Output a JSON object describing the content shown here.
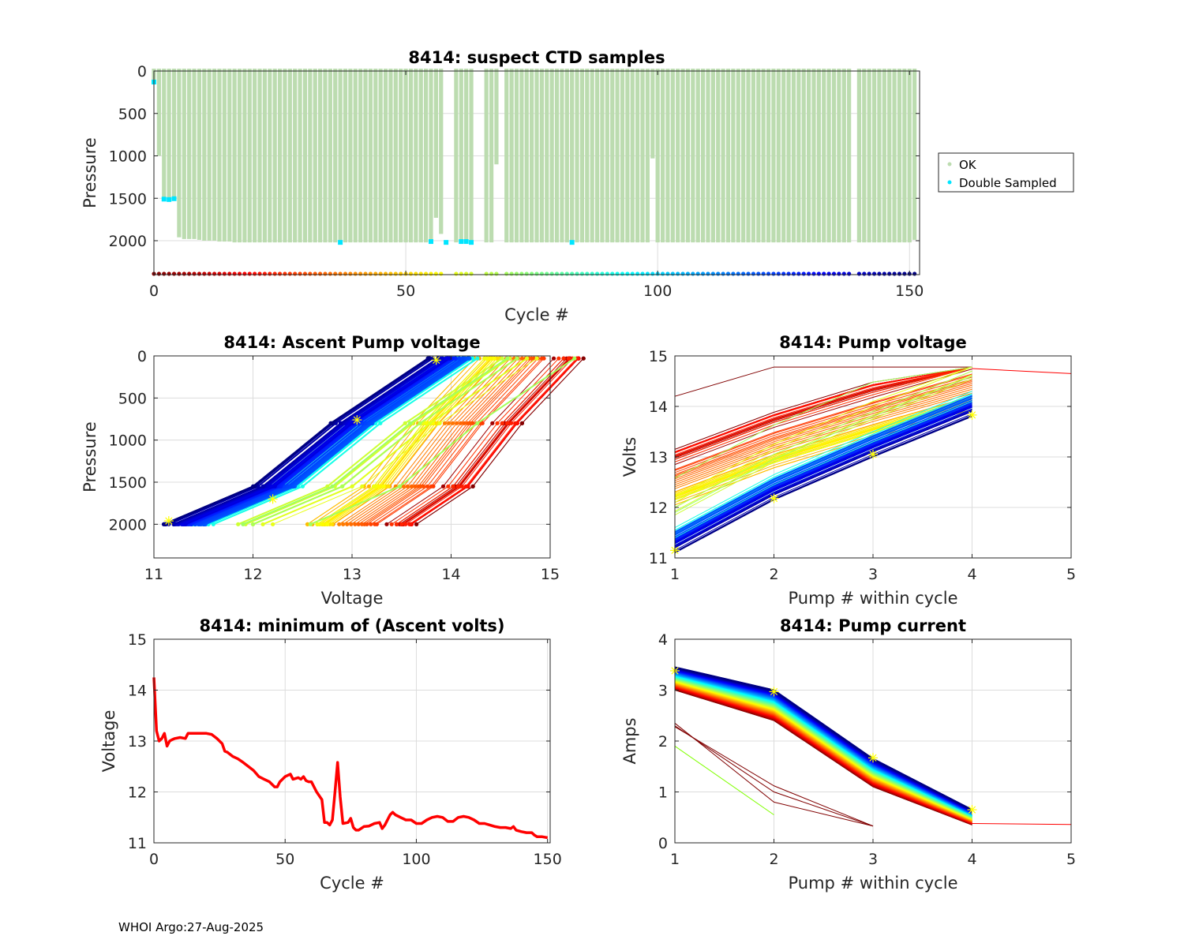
{
  "footer": "WHOI Argo:27-Aug-2025",
  "colors": {
    "ok": "#bcdcb0",
    "double_sampled": "#00e5ff",
    "min_line": "#ff0000",
    "marker": "#ffff00",
    "grid": "#dcdcdc",
    "axis": "#262626"
  },
  "chart_data": [
    {
      "id": "suspect-ctd",
      "type": "bar",
      "title": "8414: suspect CTD samples",
      "xlabel": "Cycle #",
      "ylabel": "Pressure",
      "xlim": [
        0,
        152
      ],
      "ylim": [
        0,
        2400
      ],
      "y_reversed": true,
      "xticks": [
        0,
        50,
        100,
        150
      ],
      "yticks": [
        0,
        500,
        1000,
        1500,
        2000
      ],
      "grid": true,
      "legend": {
        "placement": "outside-right",
        "entries": [
          {
            "label": "OK",
            "color": "#bcdcb0"
          },
          {
            "label": "Double Sampled",
            "color": "#00e5ff"
          }
        ]
      },
      "missing_cycles": [
        58,
        59,
        64,
        65,
        69,
        139
      ],
      "ok_profile_max_pressure": {
        "default": 2020,
        "overrides": {
          "0": 150,
          "1": 1000,
          "2": 1510,
          "3": 1510,
          "4": 1510,
          "5": 1960,
          "6": 1980,
          "7": 1980,
          "8": 1980,
          "9": 1990,
          "10": 2000,
          "11": 2000,
          "12": 2000,
          "13": 2010,
          "14": 2010,
          "15": 2010,
          "56": 1730,
          "57": 1920,
          "68": 1100,
          "99": 1030,
          "151": 1990
        }
      },
      "double_sampled_points": [
        {
          "cycle": 0,
          "pressure": 130
        },
        {
          "cycle": 2,
          "pressure": 1510
        },
        {
          "cycle": 3,
          "pressure": 1515
        },
        {
          "cycle": 4,
          "pressure": 1505
        },
        {
          "cycle": 37,
          "pressure": 2020
        },
        {
          "cycle": 55,
          "pressure": 2010
        },
        {
          "cycle": 58,
          "pressure": 2020
        },
        {
          "cycle": 61,
          "pressure": 2010
        },
        {
          "cycle": 62,
          "pressure": 2010
        },
        {
          "cycle": 63,
          "pressure": 2020
        },
        {
          "cycle": 83,
          "pressure": 2020
        }
      ],
      "cycle_marker_pressure": 2390,
      "colormap": "jet"
    },
    {
      "id": "ascent-pump-voltage",
      "type": "line",
      "title": "8414: Ascent Pump voltage",
      "xlabel": "Voltage",
      "ylabel": "Pressure",
      "xlim": [
        11,
        15
      ],
      "ylim": [
        0,
        2400
      ],
      "y_reversed": true,
      "xticks": [
        11,
        12,
        13,
        14,
        15
      ],
      "yticks": [
        0,
        500,
        1000,
        1500,
        2000
      ],
      "grid": true,
      "series_template": {
        "pressures": [
          2000,
          1550,
          800,
          30
        ],
        "voltage_offsets": [
          0.0,
          0.92,
          1.72,
          2.72
        ],
        "start_voltage_by_cycle_trend": "follows minimum-of-ascent-volts curve"
      },
      "highlighted_points": [
        {
          "voltage": 11.15,
          "pressure": 1960
        },
        {
          "voltage": 12.2,
          "pressure": 1700
        },
        {
          "voltage": 13.05,
          "pressure": 760
        },
        {
          "voltage": 13.85,
          "pressure": 50
        }
      ],
      "colormap": "jet"
    },
    {
      "id": "pump-voltage",
      "type": "line",
      "title": "8414: Pump voltage",
      "xlabel": "Pump # within cycle",
      "ylabel": "Volts",
      "xlim": [
        1,
        5
      ],
      "ylim": [
        11,
        15
      ],
      "xticks": [
        1,
        2,
        3,
        4,
        5
      ],
      "yticks": [
        11,
        12,
        13,
        14,
        15
      ],
      "grid": true,
      "series_template": {
        "pump_index": [
          1,
          2,
          3,
          4
        ],
        "voltage_offsets": [
          0.0,
          1.05,
          1.9,
          2.7
        ]
      },
      "extra_series": [
        {
          "pump_index": [
            4,
            5
          ],
          "volts": [
            14.75,
            14.65
          ],
          "color": "#ff0000"
        }
      ],
      "highlighted_points": [
        {
          "pump": 1,
          "volts": 11.15
        },
        {
          "pump": 2,
          "volts": 12.18
        },
        {
          "pump": 3,
          "volts": 13.05
        },
        {
          "pump": 4,
          "volts": 13.83
        }
      ],
      "colormap": "jet"
    },
    {
      "id": "min-ascent-volts",
      "type": "line",
      "title": "8414: minimum of (Ascent volts)",
      "xlabel": "Cycle #",
      "ylabel": "Voltage",
      "xlim": [
        0,
        151
      ],
      "ylim": [
        11,
        15
      ],
      "xticks": [
        0,
        50,
        100,
        150
      ],
      "yticks": [
        11,
        12,
        13,
        14,
        15
      ],
      "grid": true,
      "x": [
        0,
        1,
        2,
        3,
        4,
        5,
        6,
        7,
        8,
        10,
        12,
        13,
        14,
        16,
        20,
        22,
        24,
        26,
        27,
        28,
        30,
        32,
        34,
        36,
        38,
        40,
        42,
        44,
        46,
        47,
        48,
        50,
        52,
        53,
        55,
        56,
        57,
        58,
        59,
        60,
        62,
        64,
        65,
        66,
        67,
        68,
        69,
        70,
        71,
        72,
        74,
        75,
        76,
        77,
        78,
        80,
        82,
        84,
        86,
        87,
        88,
        90,
        91,
        92,
        94,
        96,
        98,
        100,
        102,
        104,
        106,
        108,
        110,
        112,
        114,
        116,
        118,
        120,
        122,
        124,
        126,
        128,
        130,
        132,
        134,
        136,
        137,
        138,
        140,
        142,
        144,
        145,
        146,
        148,
        150
      ],
      "values": [
        14.25,
        13.2,
        13.0,
        13.05,
        13.15,
        12.9,
        13.0,
        13.03,
        13.05,
        13.07,
        13.05,
        13.15,
        13.15,
        13.15,
        13.15,
        13.13,
        13.05,
        12.95,
        12.8,
        12.78,
        12.7,
        12.65,
        12.58,
        12.5,
        12.42,
        12.3,
        12.25,
        12.2,
        12.1,
        12.1,
        12.2,
        12.3,
        12.35,
        12.25,
        12.28,
        12.25,
        12.3,
        12.22,
        12.2,
        12.2,
        12.0,
        11.85,
        11.4,
        11.4,
        11.35,
        11.45,
        12.0,
        12.58,
        11.9,
        11.38,
        11.4,
        11.48,
        11.3,
        11.25,
        11.25,
        11.32,
        11.33,
        11.38,
        11.4,
        11.28,
        11.35,
        11.55,
        11.6,
        11.55,
        11.5,
        11.45,
        11.45,
        11.38,
        11.38,
        11.45,
        11.5,
        11.52,
        11.5,
        11.42,
        11.42,
        11.5,
        11.52,
        11.5,
        11.45,
        11.38,
        11.38,
        11.35,
        11.32,
        11.3,
        11.3,
        11.28,
        11.32,
        11.25,
        11.22,
        11.2,
        11.2,
        11.15,
        11.12,
        11.12,
        11.1
      ]
    },
    {
      "id": "pump-current",
      "type": "line",
      "title": "8414: Pump current",
      "xlabel": "Pump # within cycle",
      "ylabel": "Amps",
      "xlim": [
        1,
        5
      ],
      "ylim": [
        0,
        4
      ],
      "xticks": [
        1,
        2,
        3,
        4,
        5
      ],
      "yticks": [
        0,
        1,
        2,
        3,
        4
      ],
      "grid": true,
      "series_template": {
        "pump_index": [
          1,
          2,
          3,
          4
        ],
        "amps_typical": [
          3.3,
          2.9,
          1.6,
          0.6
        ]
      },
      "extra_series": [
        {
          "pump_index": [
            4,
            5
          ],
          "amps": [
            0.38,
            0.36
          ],
          "color": "#ff0000"
        }
      ],
      "highlighted_points": [
        {
          "pump": 1,
          "amps": 3.38
        },
        {
          "pump": 2,
          "amps": 2.97
        },
        {
          "pump": 3,
          "amps": 1.67
        },
        {
          "pump": 4,
          "amps": 0.65
        }
      ],
      "colormap": "jet"
    }
  ]
}
